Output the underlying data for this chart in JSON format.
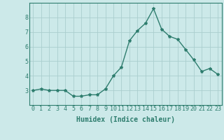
{
  "x": [
    0,
    1,
    2,
    3,
    4,
    5,
    6,
    7,
    8,
    9,
    10,
    11,
    12,
    13,
    14,
    15,
    16,
    17,
    18,
    19,
    20,
    21,
    22,
    23
  ],
  "y": [
    3.0,
    3.1,
    3.0,
    3.0,
    3.0,
    2.6,
    2.6,
    2.7,
    2.7,
    3.1,
    4.0,
    4.6,
    6.4,
    7.1,
    7.6,
    8.6,
    7.2,
    6.7,
    6.5,
    5.8,
    5.1,
    4.3,
    4.5,
    4.1
  ],
  "xlabel": "Humidex (Indice chaleur)",
  "ylim": [
    2.0,
    9.0
  ],
  "xlim": [
    -0.5,
    23.5
  ],
  "yticks": [
    3,
    4,
    5,
    6,
    7,
    8
  ],
  "xticks": [
    0,
    1,
    2,
    3,
    4,
    5,
    6,
    7,
    8,
    9,
    10,
    11,
    12,
    13,
    14,
    15,
    16,
    17,
    18,
    19,
    20,
    21,
    22,
    23
  ],
  "line_color": "#2e7d6e",
  "marker": "*",
  "marker_size": 3,
  "bg_color": "#cce9e9",
  "grid_color": "#aacece",
  "axis_color": "#2e7d6e",
  "xlabel_fontsize": 7,
  "tick_fontsize": 6,
  "line_width": 1.0
}
